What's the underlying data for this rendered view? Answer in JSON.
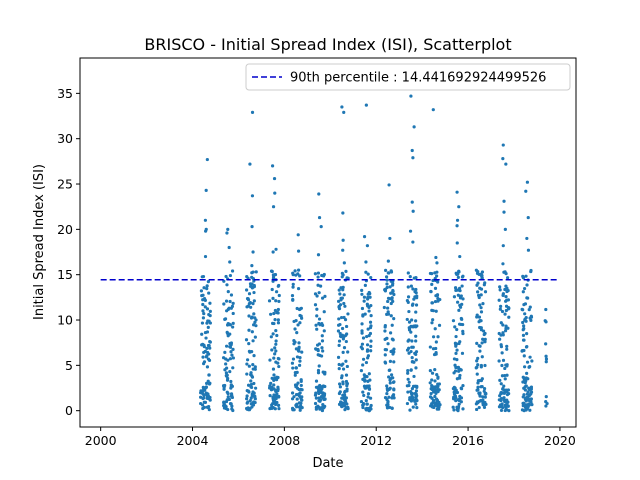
{
  "chart_data": {
    "type": "scatter",
    "title": "BRISCO - Initial Spread Index (ISI), Scatterplot",
    "xlabel": "Date",
    "ylabel": "Initial Spread Index (ISI)",
    "xlim": [
      1999.1,
      2020.7
    ],
    "ylim": [
      -1.8,
      38.9
    ],
    "xticks": [
      2000,
      2004,
      2008,
      2012,
      2016,
      2020
    ],
    "yticks": [
      0,
      5,
      10,
      15,
      20,
      25,
      30,
      35
    ],
    "grid": false,
    "legend_position": "upper-right",
    "colors": {
      "points": "#1f77b4",
      "percentile_line": "#0000cc"
    },
    "percentile": {
      "label": "90th percentile : 14.441692924499526",
      "value": 14.441692924499526,
      "x_start": 2000,
      "x_end": 2019.9
    },
    "seasons": [
      {
        "start": 2004.35,
        "end": 2004.78,
        "n": 100,
        "extremes": [
          27.7,
          24.3,
          21.0,
          20.0,
          19.8,
          17.0
        ]
      },
      {
        "start": 2005.35,
        "end": 2005.78,
        "n": 90,
        "extremes": [
          20.0,
          19.6,
          18.0,
          16.4
        ]
      },
      {
        "start": 2006.35,
        "end": 2006.78,
        "n": 95,
        "extremes": [
          32.9,
          27.2,
          23.7,
          20.3,
          17.5,
          16.0
        ]
      },
      {
        "start": 2007.35,
        "end": 2007.78,
        "n": 100,
        "extremes": [
          27.0,
          25.6,
          24.0,
          22.5,
          17.8,
          17.5
        ]
      },
      {
        "start": 2008.35,
        "end": 2008.78,
        "n": 85,
        "extremes": [
          19.4,
          17.6,
          15.5
        ]
      },
      {
        "start": 2009.35,
        "end": 2009.78,
        "n": 95,
        "extremes": [
          23.9,
          21.3,
          20.3,
          17.2
        ]
      },
      {
        "start": 2010.35,
        "end": 2010.78,
        "n": 100,
        "extremes": [
          33.5,
          32.9,
          21.8,
          18.8,
          17.7,
          16.3
        ]
      },
      {
        "start": 2011.35,
        "end": 2011.78,
        "n": 95,
        "extremes": [
          33.7,
          19.2,
          18.2,
          16.4
        ]
      },
      {
        "start": 2012.35,
        "end": 2012.78,
        "n": 95,
        "extremes": [
          24.9,
          19.0,
          16.5,
          15.2
        ]
      },
      {
        "start": 2013.35,
        "end": 2013.78,
        "n": 100,
        "extremes": [
          34.7,
          31.3,
          28.7,
          27.9,
          23.0,
          22.0,
          19.8,
          18.6
        ]
      },
      {
        "start": 2014.35,
        "end": 2014.78,
        "n": 95,
        "extremes": [
          33.2,
          16.9,
          16.3,
          15.2
        ]
      },
      {
        "start": 2015.35,
        "end": 2015.78,
        "n": 100,
        "extremes": [
          24.1,
          22.5,
          21.0,
          20.4,
          18.5,
          17.0
        ]
      },
      {
        "start": 2016.35,
        "end": 2016.78,
        "n": 90,
        "extremes": [
          15.3,
          14.9
        ]
      },
      {
        "start": 2017.35,
        "end": 2017.78,
        "n": 100,
        "extremes": [
          29.3,
          27.8,
          27.2,
          23.1,
          21.9,
          20.0,
          18.2,
          16.2
        ]
      },
      {
        "start": 2018.35,
        "end": 2018.78,
        "n": 100,
        "extremes": [
          25.2,
          24.2,
          21.3,
          19.0,
          17.7
        ]
      },
      {
        "start": 2019.35,
        "end": 2019.45,
        "n": 6,
        "extremes": [
          9.8,
          6.0,
          5.7,
          5.4,
          1.0
        ]
      }
    ]
  }
}
